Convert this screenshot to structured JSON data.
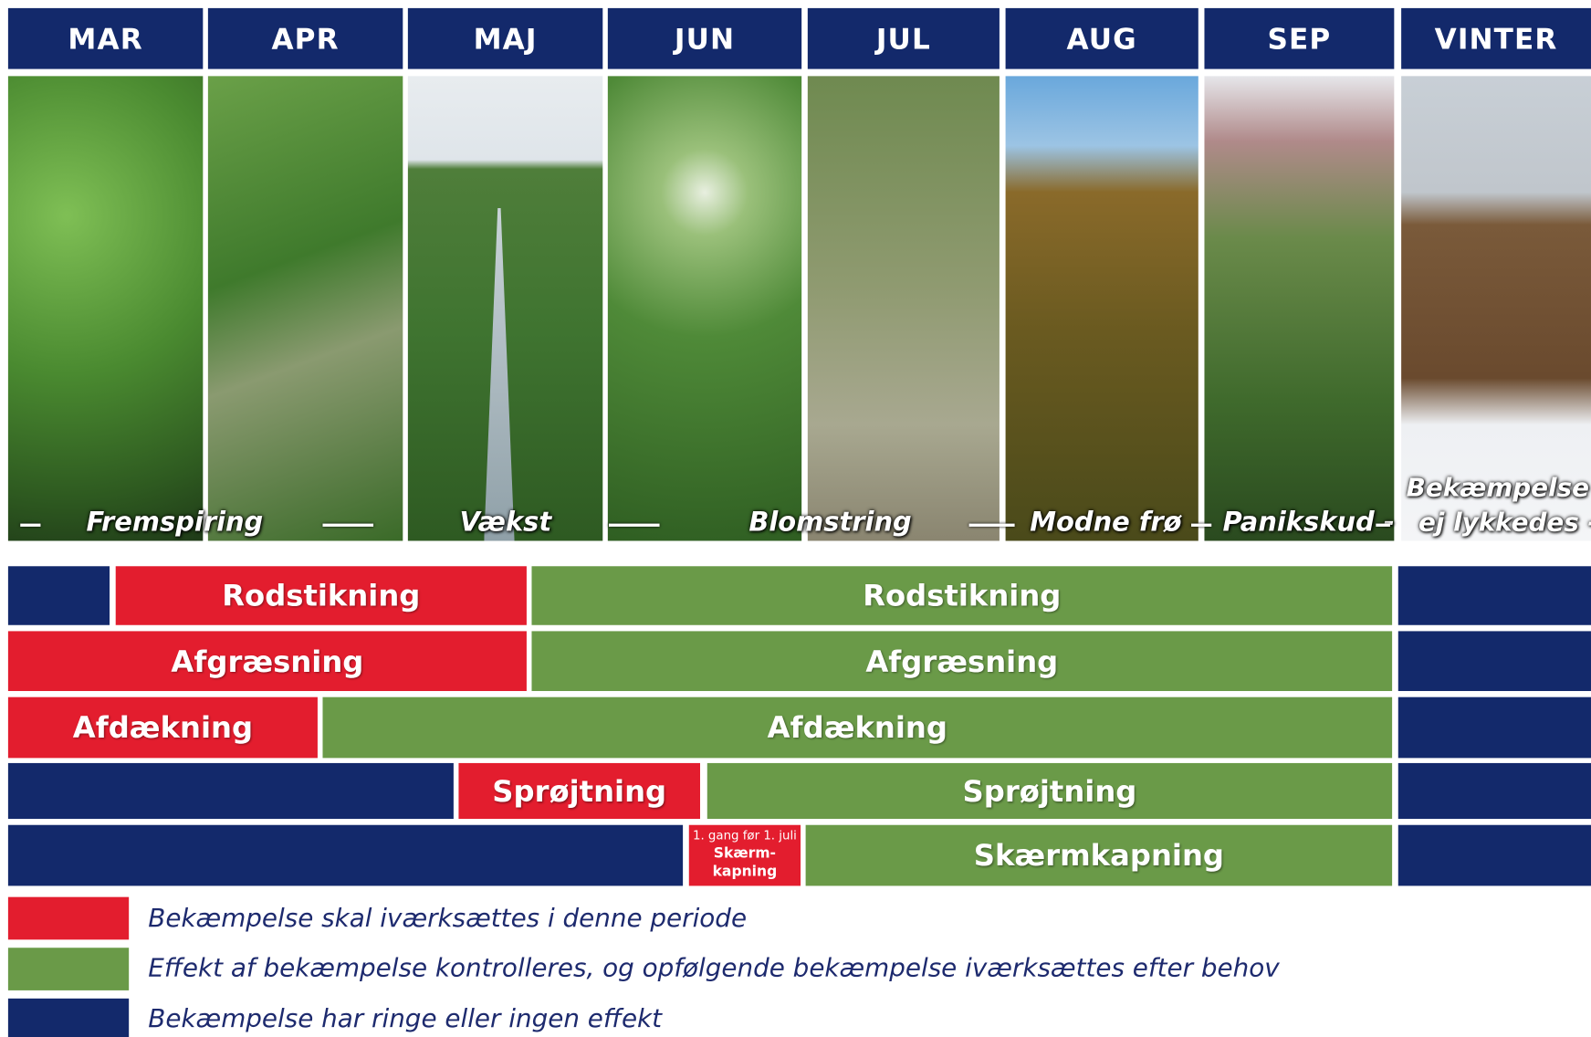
{
  "header": {
    "months": [
      "MAR",
      "APR",
      "MAJ",
      "JUN",
      "JUL",
      "AUG",
      "SEP",
      "VINTER"
    ]
  },
  "photo_captions": [
    "Fremspiring",
    "Vækst",
    "Blomstring",
    "Modne frø",
    "Panikskud -",
    "Bekæmpelse",
    "ej lykkedes -"
  ],
  "rows": [
    [
      "Rodstikning",
      "Rodstikning"
    ],
    [
      "Afgræsning",
      "Afgræsning"
    ],
    [
      "Afdækning",
      "Afdækning"
    ],
    [
      "Sprøjtning",
      "Sprøjtning"
    ],
    [
      {
        "note": "1. gang før 1. juli",
        "label": "Skærm-kapning"
      },
      "Skærmkapning"
    ]
  ],
  "legend": [
    "Bekæmpelse skal iværksættes i denne periode",
    "Effekt af bekæmpelse kontrolleres, og opfølgende bekæmpelse iværksættes efter behov",
    "Bekæmpelse har ringe eller ingen effekt"
  ]
}
